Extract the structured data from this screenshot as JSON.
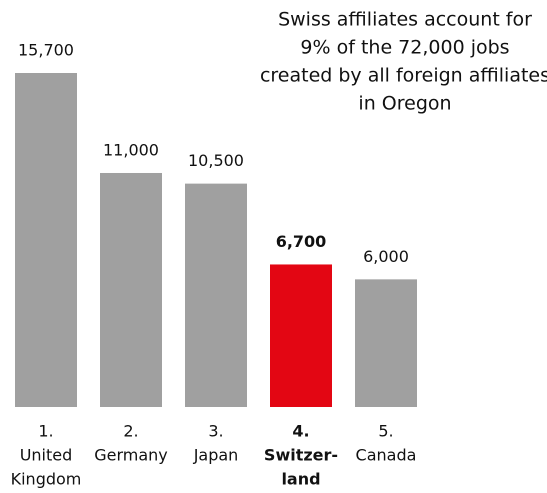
{
  "chart_data": {
    "type": "bar",
    "annotation": [
      "Swiss affiliates account for",
      "9% of the 72,000 jobs",
      "created by all foreign affiliates",
      "in Oregon"
    ],
    "categories": [
      [
        "1.",
        "United",
        "Kingdom"
      ],
      [
        "2.",
        "Germany"
      ],
      [
        "3.",
        "Japan"
      ],
      [
        "4.",
        "Switzer-",
        "land"
      ],
      [
        "5.",
        "Canada"
      ]
    ],
    "values": [
      15700,
      11000,
      10500,
      6700,
      6000
    ],
    "value_labels": [
      "15,700",
      "11,000",
      "10,500",
      "6,700",
      "6,000"
    ],
    "colors": [
      "#a0a0a0",
      "#a0a0a0",
      "#a0a0a0",
      "#e30613",
      "#a0a0a0"
    ],
    "highlight": 3
  }
}
